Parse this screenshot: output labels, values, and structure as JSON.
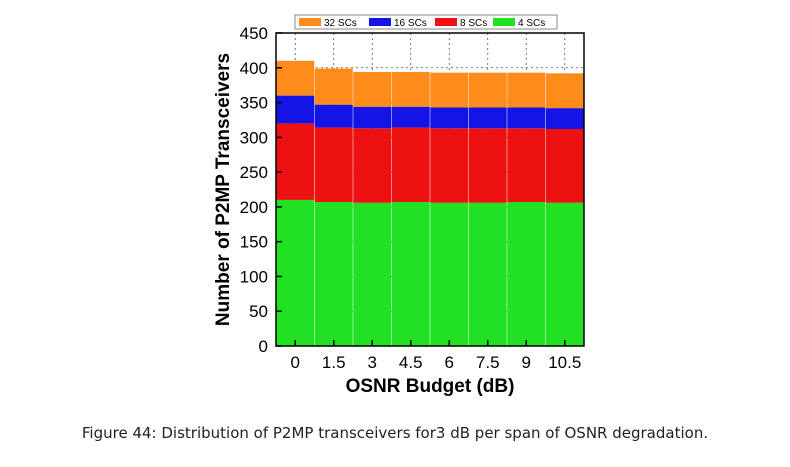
{
  "caption": "Figure 44: Distribution of P2MP transceivers for3 dB per span of OSNR degradation.",
  "chart_data": {
    "type": "bar",
    "stacked": true,
    "xlabel": "OSNR Budget (dB)",
    "ylabel": "Number of P2MP Transceivers",
    "ylim": [
      0,
      450
    ],
    "yticks": [
      0,
      50,
      100,
      150,
      200,
      250,
      300,
      350,
      400,
      450
    ],
    "categories": [
      "0",
      "1.5",
      "3",
      "4.5",
      "6",
      "7.5",
      "9",
      "10.5"
    ],
    "grid": true,
    "legend_position": "top",
    "series": [
      {
        "name": "4 SCs",
        "color": "#22e022",
        "values": [
          210,
          207,
          206,
          207,
          206,
          206,
          207,
          206
        ]
      },
      {
        "name": "8 SCs",
        "color": "#ee1111",
        "values": [
          110,
          107,
          107,
          107,
          107,
          107,
          106,
          106
        ]
      },
      {
        "name": "16 SCs",
        "color": "#1414e6",
        "values": [
          40,
          33,
          31,
          30,
          30,
          30,
          30,
          30
        ]
      },
      {
        "name": "32 SCs",
        "color": "#ff8c1a",
        "values": [
          50,
          52,
          50,
          50,
          50,
          50,
          50,
          50
        ]
      }
    ],
    "legend_order": [
      "32 SCs",
      "16 SCs",
      "8 SCs",
      "4 SCs"
    ]
  }
}
